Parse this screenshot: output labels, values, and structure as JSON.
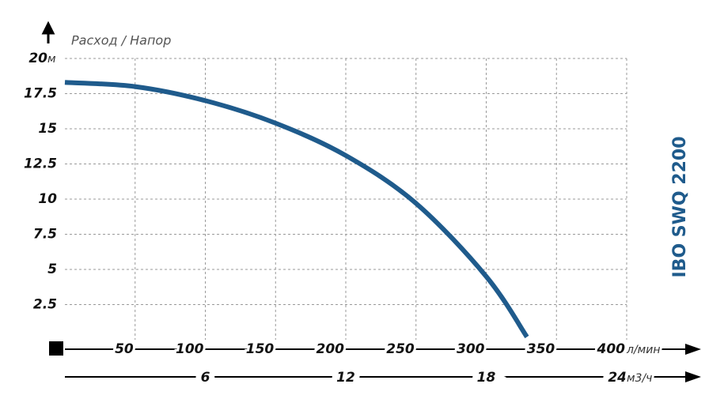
{
  "chart_data": {
    "type": "line",
    "title": "Расход / Напор",
    "model": "IBO SWQ 2200",
    "y_unit": "м",
    "x_unit": "л/мин",
    "x2_unit": "м3/ч",
    "x": [
      0,
      50,
      100,
      150,
      200,
      250,
      300,
      329
    ],
    "series": [
      {
        "color": "#1f5b8c",
        "values": [
          18.3,
          18,
          17,
          15.4,
          13.1,
          9.7,
          4.5,
          0.2
        ]
      }
    ],
    "xlim": [
      0,
      400
    ],
    "xticks": [
      50,
      100,
      150,
      200,
      250,
      300,
      350,
      400
    ],
    "x2lim": [
      0,
      24
    ],
    "x2ticks": [
      6,
      12,
      18,
      24
    ],
    "ylim": [
      0,
      20
    ],
    "yticks": [
      2.5,
      5,
      7.5,
      10,
      12.5,
      15,
      17.5,
      20
    ],
    "grid": true
  }
}
